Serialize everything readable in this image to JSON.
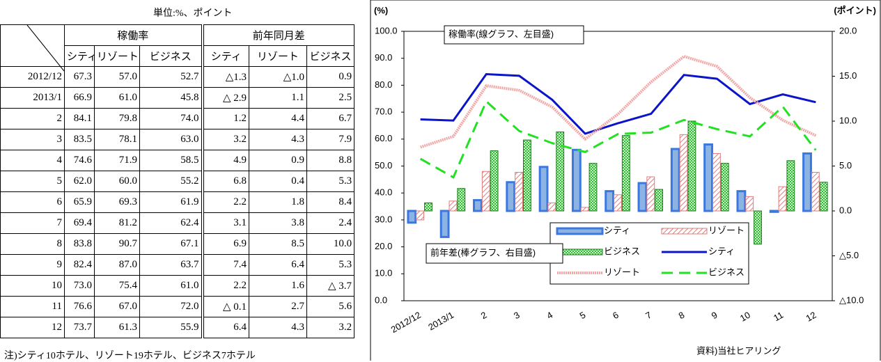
{
  "table": {
    "unit": "単位:%、ポイント",
    "groups": [
      "稼働率",
      "前年同月差"
    ],
    "subheaders": [
      "シティ",
      "リゾート",
      "ビジネス",
      "シティ",
      "リゾート",
      "ビジネス"
    ],
    "rows": [
      [
        "2012/12",
        "67.3",
        "57.0",
        "52.7",
        "△1.3",
        "△1.0",
        "0.9"
      ],
      [
        "2013/1",
        "66.9",
        "61.0",
        "45.8",
        "△ 2.9",
        "1.1",
        "2.5"
      ],
      [
        "2",
        "84.1",
        "79.8",
        "74.0",
        "1.2",
        "4.4",
        "6.7"
      ],
      [
        "3",
        "83.5",
        "78.1",
        "63.0",
        "3.2",
        "4.3",
        "7.9"
      ],
      [
        "4",
        "74.6",
        "71.9",
        "58.5",
        "4.9",
        "0.9",
        "8.8"
      ],
      [
        "5",
        "62.0",
        "60.0",
        "55.2",
        "6.8",
        "0.4",
        "5.3"
      ],
      [
        "6",
        "65.9",
        "69.3",
        "61.9",
        "2.2",
        "1.8",
        "8.4"
      ],
      [
        "7",
        "69.4",
        "81.2",
        "62.4",
        "3.1",
        "3.8",
        "2.4"
      ],
      [
        "8",
        "83.8",
        "90.7",
        "67.1",
        "6.9",
        "8.5",
        "10.0"
      ],
      [
        "9",
        "82.4",
        "87.0",
        "63.7",
        "7.4",
        "6.4",
        "5.3"
      ],
      [
        "10",
        "73.0",
        "75.4",
        "61.0",
        "2.2",
        "1.6",
        "△ 3.7"
      ],
      [
        "11",
        "76.6",
        "67.0",
        "72.0",
        "△ 0.1",
        "2.7",
        "5.6"
      ],
      [
        "12",
        "73.7",
        "61.3",
        "55.9",
        "6.4",
        "4.3",
        "3.2"
      ]
    ],
    "note": "注)シティ10ホテル、リゾート19ホテル、ビジネス7ホテル"
  },
  "chart_data": {
    "type": "bar",
    "ylabel": "(%)",
    "y2label": "(ポイント)",
    "annotations": [
      "稼働率(線グラフ、左目盛)",
      "前年差(棒グラフ、右目盛)"
    ],
    "source": "資料)当社ヒアリング",
    "categories": [
      "2012/12",
      "2013/1",
      "2",
      "3",
      "4",
      "5",
      "6",
      "7",
      "8",
      "9",
      "10",
      "11",
      "12"
    ],
    "series": [
      {
        "name": "シティ",
        "axis": "y2",
        "style": "solid",
        "color": "#8db3e2",
        "values": [
          -1.3,
          -2.9,
          1.2,
          3.2,
          4.9,
          6.8,
          2.2,
          3.1,
          6.9,
          7.4,
          2.2,
          -0.1,
          6.4
        ]
      },
      {
        "name": "リゾート",
        "axis": "y2",
        "style": "hatch",
        "color": "#e07b7b",
        "values": [
          -1.0,
          1.1,
          4.4,
          4.3,
          0.9,
          0.4,
          1.8,
          3.8,
          8.5,
          6.4,
          1.6,
          2.7,
          4.3
        ]
      },
      {
        "name": "ビジネス",
        "axis": "y2",
        "style": "check",
        "color": "#33bb33",
        "values": [
          0.9,
          2.5,
          6.7,
          7.9,
          8.8,
          5.3,
          8.4,
          2.4,
          10.0,
          5.3,
          -3.7,
          5.6,
          3.2
        ]
      },
      {
        "name": "シティ",
        "type": "line",
        "dash": "solid",
        "color": "#0a14c8",
        "values": [
          67.3,
          66.9,
          84.1,
          83.5,
          74.6,
          62.0,
          65.9,
          69.4,
          83.8,
          82.4,
          73.0,
          76.6,
          73.7
        ]
      },
      {
        "name": "リゾート",
        "type": "line",
        "dash": "dotted",
        "color": "#f2a7a7",
        "values": [
          57.0,
          61.0,
          79.8,
          78.1,
          71.9,
          60.0,
          69.3,
          81.2,
          90.7,
          87.0,
          75.4,
          67.0,
          61.3
        ]
      },
      {
        "name": "ビジネス",
        "type": "line",
        "dash": "dashed",
        "color": "#22e022",
        "values": [
          52.7,
          45.8,
          74.0,
          63.0,
          58.5,
          55.2,
          61.9,
          62.4,
          67.1,
          63.7,
          61.0,
          72.0,
          55.9
        ]
      }
    ],
    "ylim": [
      0,
      100
    ],
    "yticks": [
      {
        "value": 0,
        "label": "0.0"
      },
      {
        "value": 10,
        "label": "10.0"
      },
      {
        "value": 20,
        "label": "20.0"
      },
      {
        "value": 30,
        "label": "30.0"
      },
      {
        "value": 40,
        "label": "40.0"
      },
      {
        "value": 50,
        "label": "50.0"
      },
      {
        "value": 60,
        "label": "60.0"
      },
      {
        "value": 70,
        "label": "70.0"
      },
      {
        "value": 80,
        "label": "80.0"
      },
      {
        "value": 90,
        "label": "90.0"
      },
      {
        "value": 100,
        "label": "100.0"
      }
    ],
    "y2lim": [
      -10,
      20
    ],
    "y2ticks": [
      {
        "value": -10,
        "label": "△10.0"
      },
      {
        "value": -5,
        "label": "△5.0"
      },
      {
        "value": 0,
        "label": "0.0"
      },
      {
        "value": 5,
        "label": "5.0"
      },
      {
        "value": 10,
        "label": "10.0"
      },
      {
        "value": 15,
        "label": "15.0"
      },
      {
        "value": 20,
        "label": "20.0"
      }
    ],
    "legend": "center"
  }
}
